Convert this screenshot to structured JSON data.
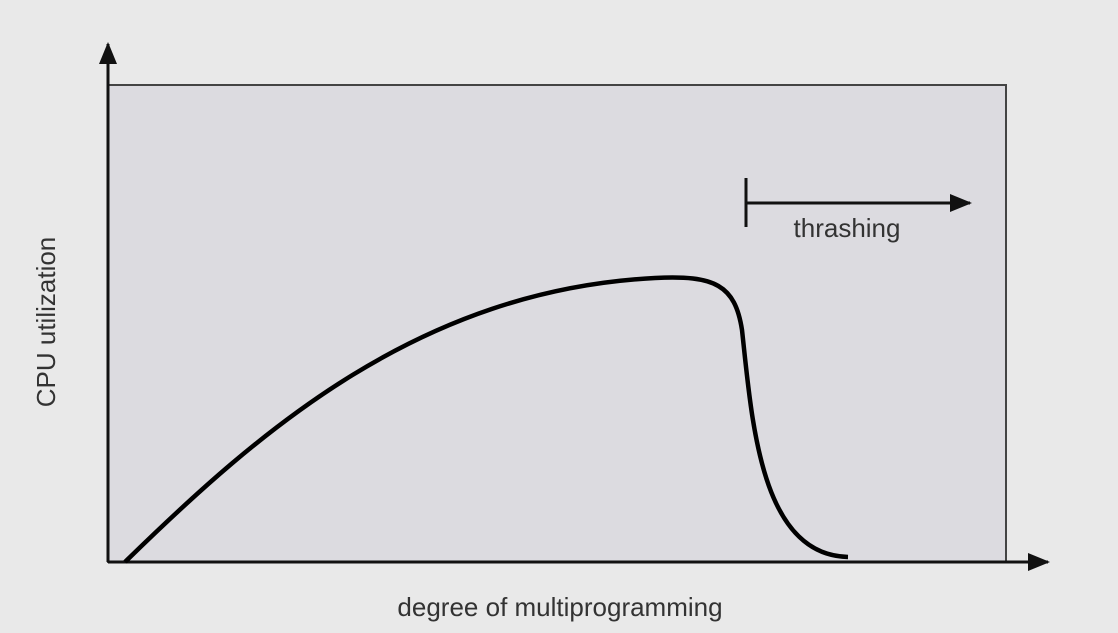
{
  "axes": {
    "y_label": "CPU utilization",
    "x_label": "degree of multiprogramming"
  },
  "annotation": {
    "label": "thrashing"
  }
}
